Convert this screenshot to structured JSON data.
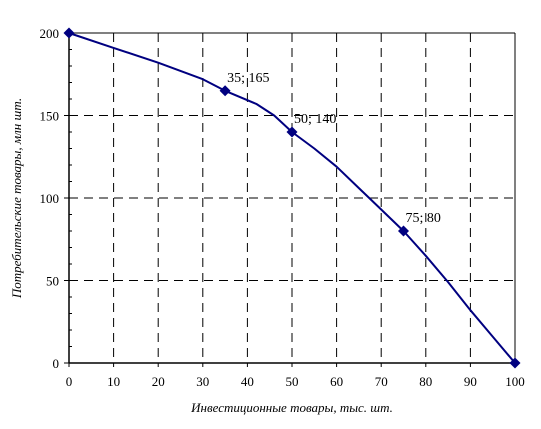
{
  "chart_data": {
    "type": "line",
    "title": "",
    "xlabel": "Инвестиционные товары, тыс. шт.",
    "ylabel": "Потребительские товары, млн шт.",
    "xlim": [
      0,
      100
    ],
    "ylim": [
      0,
      200
    ],
    "x_ticks": [
      0,
      10,
      20,
      30,
      40,
      50,
      60,
      70,
      80,
      90,
      100
    ],
    "y_ticks": [
      0,
      50,
      100,
      150,
      200
    ],
    "grid": true,
    "legend": "none",
    "series": [
      {
        "line_color": "#000080",
        "marker": "diamond",
        "curve": [
          [
            0,
            200
          ],
          [
            10,
            191
          ],
          [
            20,
            182
          ],
          [
            30,
            172
          ],
          [
            35,
            165
          ],
          [
            42,
            157
          ],
          [
            46,
            150
          ],
          [
            50,
            140
          ],
          [
            55,
            130
          ],
          [
            60,
            119
          ],
          [
            65,
            106
          ],
          [
            70,
            93
          ],
          [
            75,
            80
          ],
          [
            80,
            65
          ],
          [
            85,
            49
          ],
          [
            90,
            32
          ],
          [
            95,
            16
          ],
          [
            100,
            0
          ]
        ],
        "points": [
          {
            "x": 0,
            "y": 200,
            "label": ""
          },
          {
            "x": 35,
            "y": 165,
            "label": "35; 165"
          },
          {
            "x": 50,
            "y": 140,
            "label": "50; 140"
          },
          {
            "x": 75,
            "y": 80,
            "label": "75; 80"
          },
          {
            "x": 100,
            "y": 0,
            "label": ""
          }
        ]
      }
    ]
  }
}
